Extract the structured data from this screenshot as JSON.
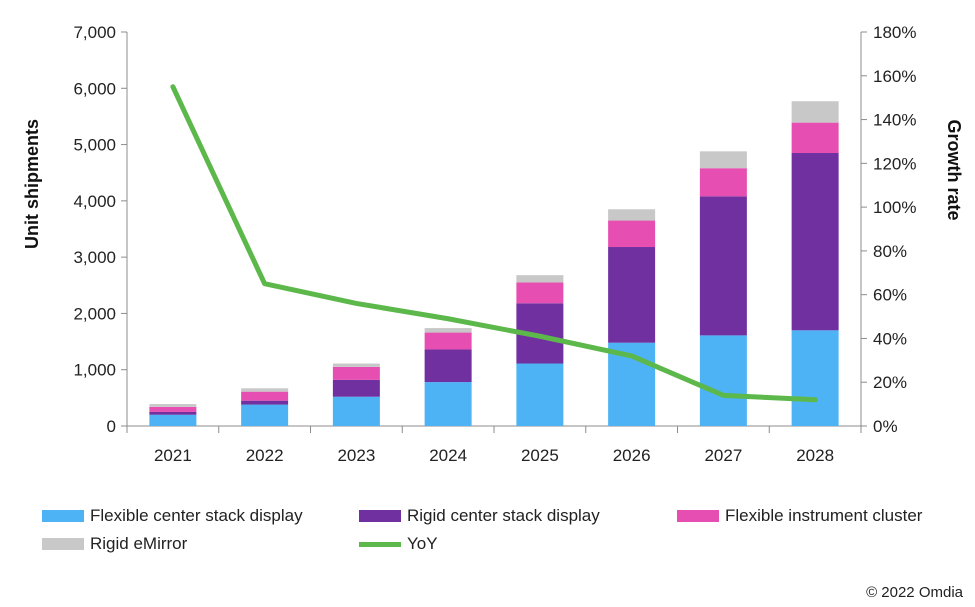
{
  "chart_data": {
    "type": "bar",
    "stacked": true,
    "categories": [
      "2021",
      "2022",
      "2023",
      "2024",
      "2025",
      "2026",
      "2027",
      "2028"
    ],
    "series": [
      {
        "name": "Flexible center stack display",
        "color": "#4db3f5",
        "values": [
          200,
          380,
          520,
          780,
          1110,
          1480,
          1610,
          1700
        ]
      },
      {
        "name": "Rigid center stack display",
        "color": "#7030a0",
        "values": [
          50,
          70,
          300,
          580,
          1070,
          1700,
          2470,
          3150
        ]
      },
      {
        "name": "Flexible instrument cluster",
        "color": "#e64fb1",
        "values": [
          90,
          160,
          230,
          300,
          370,
          470,
          500,
          540
        ]
      },
      {
        "name": "Rigid eMirror",
        "color": "#c8c8c8",
        "values": [
          50,
          60,
          60,
          80,
          130,
          200,
          300,
          380
        ]
      }
    ],
    "line_series": {
      "name": "YoY",
      "color": "#5cb84a",
      "axis": "right",
      "values": [
        155,
        65,
        56,
        49,
        41,
        32,
        14,
        12
      ]
    },
    "ylabel": "Unit shipments",
    "ylim": [
      0,
      7000
    ],
    "yticks": [
      "0",
      "1,000",
      "2,000",
      "3,000",
      "4,000",
      "5,000",
      "6,000",
      "7,000"
    ],
    "y2label": "Growth rate",
    "y2lim": [
      0,
      180
    ],
    "y2ticks": [
      "0%",
      "20%",
      "40%",
      "60%",
      "80%",
      "100%",
      "120%",
      "140%",
      "160%",
      "180%"
    ],
    "legend_position": "bottom",
    "grid": false
  },
  "copyright": "© 2022 Omdia"
}
